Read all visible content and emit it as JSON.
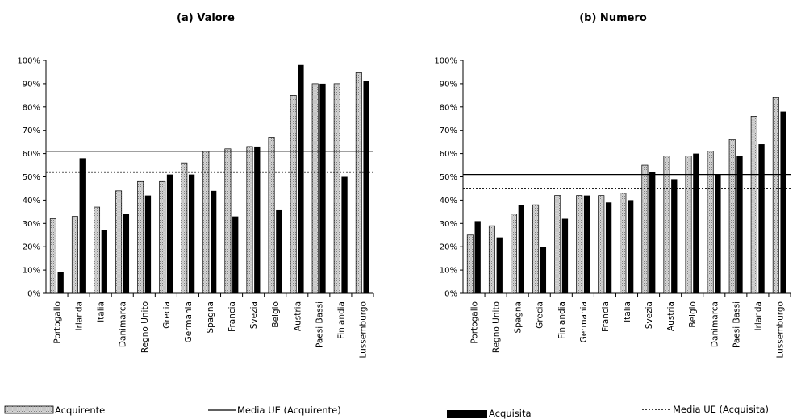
{
  "chart_data": [
    {
      "type": "bar",
      "title": "(a) Valore",
      "categories": [
        "Portogallo",
        "Irlanda",
        "Italia",
        "Danimarca",
        "Regno Unito",
        "Grecia",
        "Germania",
        "Spagna",
        "Francia",
        "Svezia",
        "Belgio",
        "Austria",
        "Paesi Bassi",
        "Finlandia",
        "Lussemburgo"
      ],
      "series": [
        {
          "name": "Acquirente",
          "values": [
            32,
            33,
            37,
            44,
            48,
            48,
            56,
            61,
            62,
            63,
            67,
            85,
            90,
            90,
            95
          ]
        },
        {
          "name": "Acquisita",
          "values": [
            9,
            58,
            27,
            34,
            42,
            51,
            51,
            44,
            33,
            63,
            36,
            98,
            90,
            50,
            91
          ]
        }
      ],
      "reference_lines": [
        {
          "name": "Media UE (Acquirente)",
          "value": 61,
          "style": "solid"
        },
        {
          "name": "Media UE (Acquisita)",
          "value": 52,
          "style": "dotted"
        }
      ],
      "ylim": [
        0,
        100
      ],
      "yticks": [
        "0%",
        "10%",
        "20%",
        "30%",
        "40%",
        "50%",
        "60%",
        "70%",
        "80%",
        "90%",
        "100%"
      ],
      "xlabel": "",
      "ylabel": "",
      "grid": false
    },
    {
      "type": "bar",
      "title": "(b) Numero",
      "categories": [
        "Portogallo",
        "Regno Unito",
        "Spagna",
        "Grecia",
        "Finlandia",
        "Germania",
        "Francia",
        "Italia",
        "Svezia",
        "Austria",
        "Belgio",
        "Danimarca",
        "Paesi Bassi",
        "Irlanda",
        "Lussemburgo"
      ],
      "series": [
        {
          "name": "Acquirente",
          "values": [
            25,
            29,
            34,
            38,
            42,
            42,
            42,
            43,
            55,
            59,
            59,
            61,
            66,
            76,
            84
          ]
        },
        {
          "name": "Acquisita",
          "values": [
            31,
            24,
            38,
            20,
            32,
            42,
            39,
            40,
            52,
            49,
            60,
            51,
            59,
            64,
            78
          ]
        }
      ],
      "reference_lines": [
        {
          "name": "Media UE (Acquirente)",
          "value": 51,
          "style": "solid"
        },
        {
          "name": "Media UE (Acquisita)",
          "value": 45,
          "style": "dotted"
        }
      ],
      "ylim": [
        0,
        100
      ],
      "yticks": [
        "0%",
        "10%",
        "20%",
        "30%",
        "40%",
        "50%",
        "60%",
        "70%",
        "80%",
        "90%",
        "100%"
      ],
      "xlabel": "",
      "ylabel": "",
      "grid": false
    }
  ],
  "legend": [
    {
      "label": "Acquirente",
      "kind": "bar-hatched"
    },
    {
      "label": "Media UE (Acquirente)",
      "kind": "line-solid"
    },
    {
      "label": "Acquisita",
      "kind": "bar-solid"
    },
    {
      "label": "Media UE (Acquisita)",
      "kind": "line-dotted"
    }
  ],
  "colors": {
    "acquirente_fill": "#c8c8c8",
    "acquisita_fill": "#000000",
    "axis": "#000000",
    "background": "#ffffff"
  }
}
